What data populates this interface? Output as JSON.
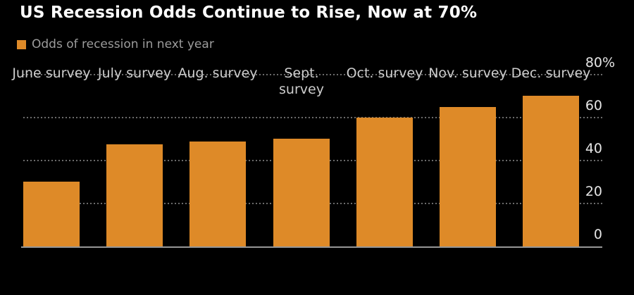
{
  "title": "US Recession Odds Continue to Rise, Now at 70%",
  "legend": {
    "label": "Odds of recession in next year",
    "swatch_color": "#DE8A28"
  },
  "colors": {
    "background": "#000000",
    "bar": "#DE8A28",
    "title_text": "#FFFFFF",
    "legend_text": "#9C9C9C",
    "axis_tick_text": "#E5E5E5",
    "category_text": "#CDCDCD",
    "gridline": "#6B6B6B",
    "axis_line": "#969696"
  },
  "chart_data": {
    "type": "bar",
    "title": "US Recession Odds Continue to Rise, Now at 70%",
    "series_name": "Odds of recession in next year",
    "categories": [
      "June survey",
      "July survey",
      "Aug. survey",
      "Sept. survey",
      "Oct. survey",
      "Nov. survey",
      "Dec. survey"
    ],
    "x_labels": [
      [
        "June survey"
      ],
      [
        "July survey"
      ],
      [
        "Aug. survey"
      ],
      [
        "Sept.",
        "survey"
      ],
      [
        "Oct. survey"
      ],
      [
        "Nov. survey"
      ],
      [
        "Dec. survey"
      ]
    ],
    "values": [
      30,
      47.5,
      49,
      50,
      60,
      65,
      70
    ],
    "xlabel": "",
    "ylabel": "",
    "ylim": [
      0,
      80
    ],
    "yticks": [
      0,
      20,
      40,
      60,
      80
    ],
    "ytick_top_suffix": "%",
    "axis_side": "right",
    "grid": "horizontal-dotted",
    "legend_position": "top-left",
    "bar_color": "#DE8A28"
  }
}
